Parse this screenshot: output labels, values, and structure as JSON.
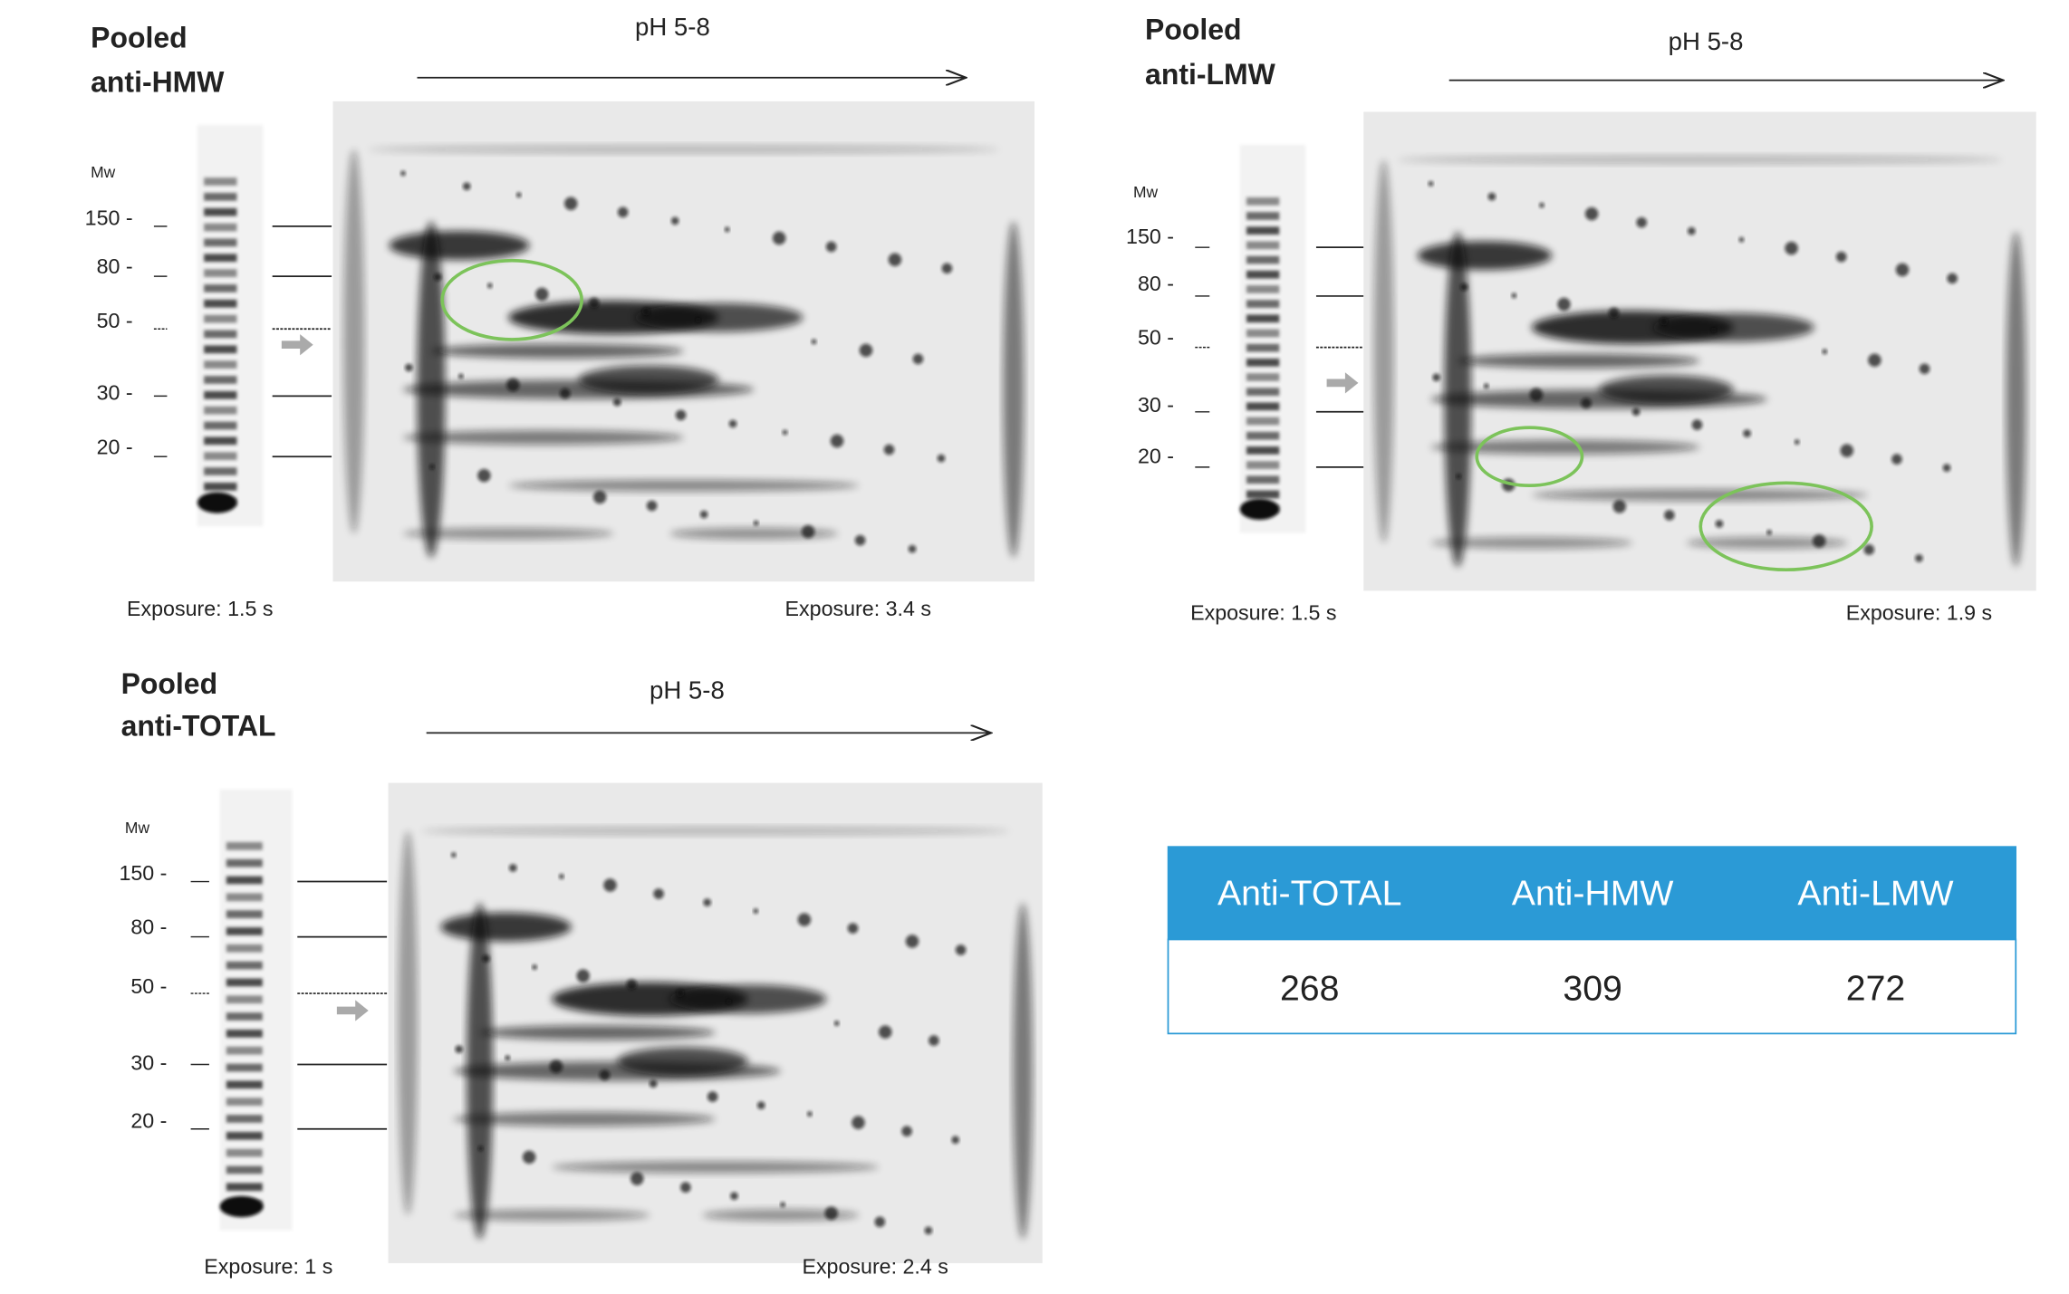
{
  "panels": [
    {
      "title_lines": [
        "Pooled",
        "anti-HMW"
      ],
      "ph_label": "pH 5-8",
      "mw_label": "Mw",
      "markers": [
        "150 -",
        "80 -",
        "50 -",
        "30 -",
        "20 -"
      ],
      "exposure_left": "Exposure:  1.5 s",
      "exposure_right": "Exposure:  3.4 s"
    },
    {
      "title_lines": [
        "Pooled",
        "anti-LMW"
      ],
      "ph_label": "pH 5-8",
      "mw_label": "Mw",
      "markers": [
        "150 -",
        "80 -",
        "50 -",
        "30 -",
        "20 -"
      ],
      "exposure_left": "Exposure:  1.5 s",
      "exposure_right": "Exposure:  1.9 s"
    },
    {
      "title_lines": [
        "Pooled",
        "anti-TOTAL"
      ],
      "ph_label": "pH 5-8",
      "mw_label": "Mw",
      "markers": [
        "150 -",
        "80 -",
        "50 -",
        "30 -",
        "20 -"
      ],
      "exposure_left": "Exposure: 1 s",
      "exposure_right": "Exposure:  2.4 s"
    }
  ],
  "table": {
    "headers": [
      "Anti-TOTAL",
      "Anti-HMW",
      "Anti-LMW"
    ],
    "rows": [
      [
        268,
        309,
        272
      ]
    ]
  }
}
